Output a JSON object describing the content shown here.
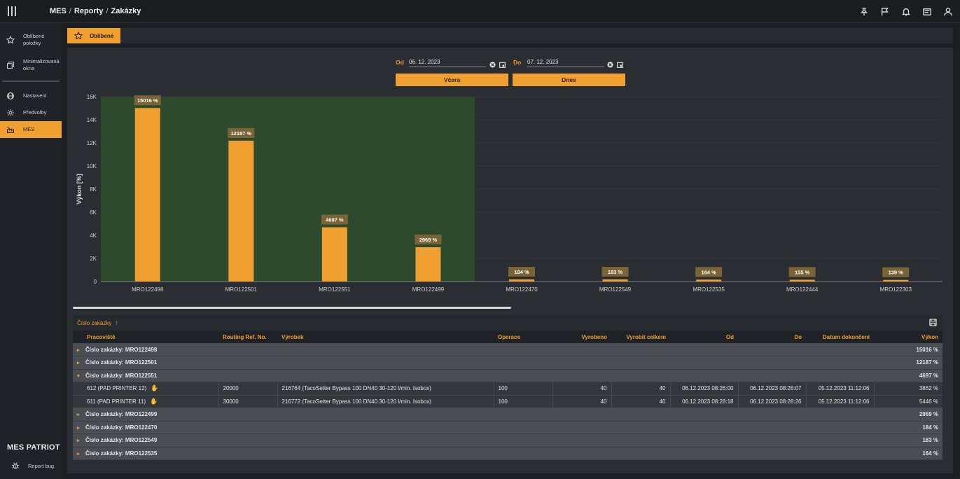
{
  "breadcrumb": {
    "part1": "MES",
    "part2": "Reporty",
    "part3": "Zakázky"
  },
  "top_icons": [
    "pin-icon",
    "flag-icon",
    "bell-icon",
    "message-icon",
    "user-icon"
  ],
  "sidebar": {
    "items": [
      {
        "label_line1": "Oblíbené",
        "label_line2": "položky",
        "icon": "star-icon"
      },
      {
        "label_line1": "Minimalizovaná",
        "label_line2": "okna",
        "icon": "windows-icon"
      },
      {
        "label": "Nastavení",
        "icon": "globe-icon"
      },
      {
        "label": "Předvolby",
        "icon": "gear-icon"
      },
      {
        "label": "MES",
        "icon": "factory-icon",
        "active": true
      }
    ],
    "brand": "MES PATRIOT",
    "report_bug": "Report bug"
  },
  "tab": {
    "label": "Oblíbené"
  },
  "filters": {
    "from_label": "Od",
    "from_value": "06. 12. 2023",
    "to_label": "Do",
    "to_value": "07. 12. 2023",
    "yesterday_label": "Včera",
    "today_label": "Dnes"
  },
  "chart_data": {
    "type": "bar",
    "ylabel": "Výkon [%]",
    "ylim": [
      0,
      16000
    ],
    "yticks": [
      "0",
      "2K",
      "4K",
      "6K",
      "8K",
      "10K",
      "12K",
      "14K",
      "16K"
    ],
    "categories": [
      "MRO122498",
      "MRO122501",
      "MRO122551",
      "MRO122499",
      "MRO122470",
      "MRO122549",
      "MRO122535",
      "MRO122444",
      "MRO122303"
    ],
    "values": [
      15016,
      12187,
      4697,
      2969,
      184,
      183,
      164,
      155,
      139
    ],
    "data_labels": [
      "15016 %",
      "12187 %",
      "4697 %",
      "2969 %",
      "184 %",
      "183 %",
      "164 %",
      "155 %",
      "139 %"
    ],
    "highlight_categories_count": 4,
    "colors": {
      "bar": "#f0a030",
      "highlight": "#2d4a2d",
      "label_bg": "#7a6436"
    },
    "grid": true
  },
  "table": {
    "group_by_label": "Číslo zakázky",
    "columns": [
      "Pracoviště",
      "Routing Ref. No.",
      "Výrobek",
      "Operace",
      "Vyrobeno",
      "Vyrobit celkem",
      "Od",
      "Do",
      "Datum dokončení",
      "Výkon"
    ],
    "rows_before": [
      {
        "label": "Číslo zakázky: MRO122498",
        "value": "15016 %"
      },
      {
        "label": "Číslo zakázky: MRO122501",
        "value": "12187 %"
      },
      {
        "label": "Číslo zakázky: MRO122551",
        "value": "4697 %",
        "expanded": true
      }
    ],
    "children": [
      {
        "workplace": "612 (PAD PRINTER 12)",
        "routing": "20000",
        "product": "216764 (TacoSetter Bypass 100 DN40 30-120 l/min. Isobox)",
        "operation": "100",
        "produced": "40",
        "total": "40",
        "from": "06.12.2023 08:26:00",
        "to": "06.12.2023 08:26:07",
        "done": "05.12.2023 11:12:06",
        "perf": "3862 %"
      },
      {
        "workplace": "611 (PAD PRINTER 11)",
        "routing": "30000",
        "product": "216772 (TacoSetter Bypass 100 DN40 30-120 l/min. Isobox)",
        "operation": "100",
        "produced": "40",
        "total": "40",
        "from": "06.12.2023 08:28:18",
        "to": "06.12.2023 08:28:26",
        "done": "05.12.2023 11:12:06",
        "perf": "5446 %"
      }
    ],
    "rows_after": [
      {
        "label": "Číslo zakázky: MRO122499",
        "value": "2969 %"
      },
      {
        "label": "Číslo zakázky: MRO122470",
        "value": "184 %"
      },
      {
        "label": "Číslo zakázky: MRO122549",
        "value": "183 %"
      },
      {
        "label": "Číslo zakázky: MRO122535",
        "value": "164 %"
      }
    ]
  }
}
